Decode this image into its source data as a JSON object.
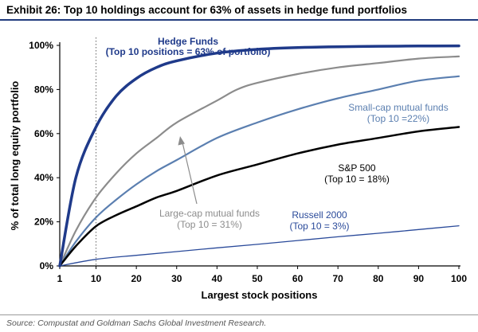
{
  "header": {
    "title": "Exhibit 26: Top 10 holdings account for 63% of assets in hedge fund portfolios"
  },
  "footer": {
    "source": "Source: Compustat and Goldman Sachs Global Investment Research."
  },
  "chart_data": {
    "type": "line",
    "xlabel": "Largest stock positions",
    "ylabel": "% of total long equity portfolio",
    "xlim": [
      1,
      100
    ],
    "ylim": [
      0,
      100
    ],
    "x_ticks": [
      1,
      10,
      20,
      30,
      40,
      50,
      60,
      70,
      80,
      90,
      100
    ],
    "x_tick_labels": [
      "1",
      "10",
      "20",
      "30",
      "40",
      "50",
      "60",
      "70",
      "80",
      "90",
      "100"
    ],
    "y_ticks": [
      0,
      20,
      40,
      60,
      80,
      100
    ],
    "y_tick_labels": [
      "0%",
      "20%",
      "40%",
      "60%",
      "80%",
      "100%"
    ],
    "grid": false,
    "reference_line": {
      "x": 10,
      "style": "dotted"
    },
    "series": [
      {
        "name": "Hedge Funds",
        "color": "#1f3a8a",
        "line_width": 3.5,
        "x": [
          1,
          5,
          10,
          15,
          20,
          25,
          30,
          40,
          50,
          60,
          70,
          80,
          90,
          100
        ],
        "y": [
          0,
          40,
          63,
          77,
          85,
          90,
          93,
          96.5,
          98.2,
          99,
          99.4,
          99.6,
          99.7,
          99.8
        ]
      },
      {
        "name": "Large-cap mutual funds",
        "color": "#8c8c8c",
        "line_width": 2.2,
        "x": [
          1,
          5,
          10,
          15,
          20,
          25,
          30,
          40,
          45,
          50,
          60,
          70,
          80,
          90,
          100
        ],
        "y": [
          0,
          16,
          31,
          42,
          51,
          58,
          65,
          75,
          80,
          83,
          87,
          90,
          92,
          94,
          95
        ]
      },
      {
        "name": "Small-cap mutual funds",
        "color": "#5b7fb0",
        "line_width": 2.2,
        "x": [
          1,
          5,
          10,
          15,
          20,
          25,
          30,
          40,
          50,
          60,
          70,
          80,
          90,
          100
        ],
        "y": [
          0,
          11,
          22,
          30,
          37,
          43,
          48,
          58,
          65,
          71,
          76,
          80,
          84,
          86
        ]
      },
      {
        "name": "S&P 500",
        "color": "#000000",
        "line_width": 2.5,
        "x": [
          1,
          5,
          10,
          15,
          20,
          25,
          30,
          40,
          50,
          60,
          70,
          80,
          90,
          100
        ],
        "y": [
          0,
          9,
          18,
          23,
          27,
          31,
          34,
          41,
          46,
          51,
          55,
          58,
          61,
          63
        ]
      },
      {
        "name": "Russell 2000",
        "color": "#2a4a9a",
        "line_width": 1.3,
        "x": [
          1,
          10,
          20,
          30,
          40,
          50,
          60,
          70,
          80,
          90,
          100
        ],
        "y": [
          0,
          3,
          4.8,
          6.5,
          8.2,
          9.8,
          11.5,
          13.2,
          14.8,
          16.5,
          18.2
        ]
      }
    ],
    "annotations": [
      {
        "series": "Hedge Funds",
        "lines": [
          "Hedge Funds",
          "(Top 10 positions = 63% of portfolio)"
        ],
        "color": "#1f3a8a",
        "bold": true
      },
      {
        "series": "Small-cap mutual funds",
        "lines": [
          "Small-cap mutual funds",
          "(Top 10 =22%)"
        ],
        "color": "#5b7fb0",
        "bold": false
      },
      {
        "series": "S&P 500",
        "lines": [
          "S&P 500",
          "(Top 10 = 18%)"
        ],
        "color": "#000000",
        "bold": false
      },
      {
        "series": "Large-cap mutual funds",
        "lines": [
          "Large-cap mutual funds",
          "(Top 10 = 31%)"
        ],
        "color": "#8c8c8c",
        "bold": false,
        "arrow": true
      },
      {
        "series": "Russell 2000",
        "lines": [
          "Russell 2000",
          "(Top 10 = 3%)"
        ],
        "color": "#2a4a9a",
        "bold": false
      }
    ]
  }
}
